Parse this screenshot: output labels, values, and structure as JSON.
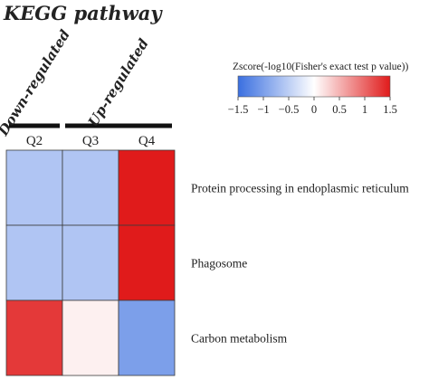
{
  "chart_data": {
    "type": "heatmap",
    "title": "KEGG pathway",
    "groups": [
      {
        "label": "Down-regulated",
        "columns": [
          "Q2"
        ]
      },
      {
        "label": "Up-regulated",
        "columns": [
          "Q3",
          "Q4"
        ]
      }
    ],
    "columns": [
      "Q2",
      "Q3",
      "Q4"
    ],
    "rows": [
      "Protein processing in endoplasmic reticulum",
      "Phagosome",
      "Carbon metabolism"
    ],
    "values": [
      [
        -0.6,
        -0.6,
        1.5
      ],
      [
        -0.6,
        -0.6,
        1.5
      ],
      [
        1.3,
        0.1,
        -1.0
      ]
    ],
    "colorbar": {
      "title": "Zscore(-log10(Fisher's exact test p value))",
      "min": -1.5,
      "max": 1.5,
      "ticks": [
        "−1.5",
        "−1",
        "−0.5",
        "0",
        "0.5",
        "1",
        "1.5"
      ],
      "tick_values": [
        -1.5,
        -1,
        -0.5,
        0,
        0.5,
        1,
        1.5
      ],
      "color_low": "#3a6fe0",
      "color_mid": "#ffffff",
      "color_high": "#e01b1b"
    }
  }
}
